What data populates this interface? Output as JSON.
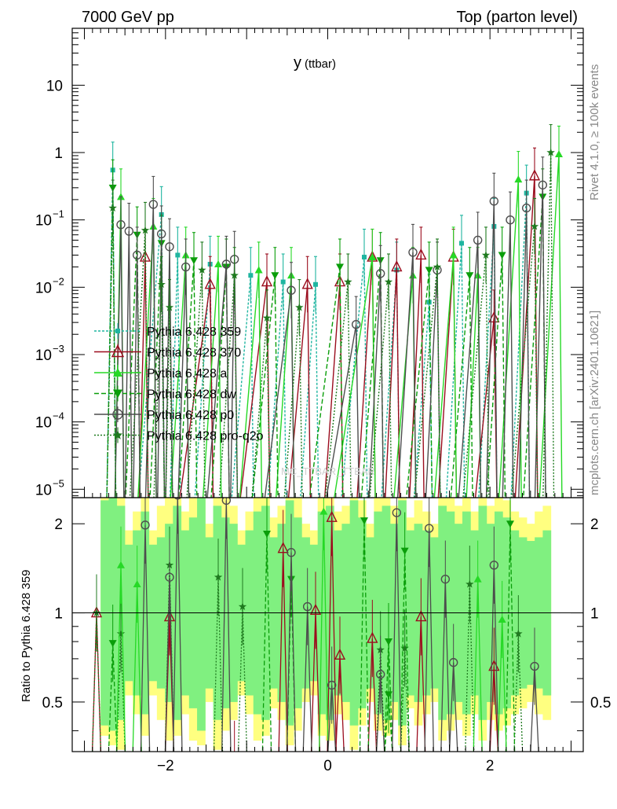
{
  "header": {
    "left": "7000 GeV pp",
    "right": "Top (parton level)"
  },
  "side": {
    "rivet": "Rivet 4.1.0, ≥ 100k events",
    "site": "mcplots.cern.ch [arXiv:2401.10621]"
  },
  "watermark": "MC_TTBAR_TTBAR",
  "colors": {
    "p359": "#1fb5a0",
    "p370": "#9b0d1e",
    "pa": "#26d926",
    "pdw": "#0a9e0a",
    "pp0": "#4d4d4d",
    "pq2o": "#1f7a1f",
    "band_yellow": "#ffff80",
    "band_green": "#80f080"
  },
  "chart_data": {
    "type": "line",
    "title": "y",
    "title_sub": "(ttbar)",
    "xlabel": "",
    "ylabel": "",
    "xlim": [
      -3.15,
      3.15
    ],
    "ylim": [
      7.5e-06,
      70
    ],
    "yscale": "log",
    "x_ticks": [
      "−2",
      "0",
      "2"
    ],
    "y_ticks": [
      {
        "base": "10",
        "exp": "−5",
        "value": 1e-05
      },
      {
        "base": "10",
        "exp": "−4",
        "value": 0.0001
      },
      {
        "base": "10",
        "exp": "−3",
        "value": 0.001
      },
      {
        "base": "10",
        "exp": "−2",
        "value": 0.01
      },
      {
        "base": "10",
        "exp": "−1",
        "value": 0.1
      },
      {
        "base": "1",
        "exp": "",
        "value": 1
      },
      {
        "base": "10",
        "exp": "",
        "value": 10
      }
    ],
    "legend": [
      {
        "key": "p359",
        "label": "Pythia 6.428 359",
        "marker": "square",
        "dash": "3,2"
      },
      {
        "key": "p370",
        "label": "Pythia 6.428 370",
        "marker": "triangle-open",
        "dash": ""
      },
      {
        "key": "pa",
        "label": "Pythia 6.428 a",
        "marker": "triangle",
        "dash": ""
      },
      {
        "key": "pdw",
        "label": "Pythia 6.428 dw",
        "marker": "triangle-down",
        "dash": "6,3"
      },
      {
        "key": "pp0",
        "label": "Pythia 6.428 p0",
        "marker": "circle-open",
        "dash": ""
      },
      {
        "key": "pq2o",
        "label": "Pythia 6.428 pro-q2o",
        "marker": "star",
        "dash": "2,2"
      }
    ],
    "series": [
      {
        "key": "p359",
        "name": "Pythia 6.428 359",
        "x": [
          -2.65,
          -2.05,
          -1.85,
          -1.45,
          -0.95,
          -0.55,
          -0.15,
          0.45,
          0.85,
          1.25,
          1.65,
          2.05,
          2.45
        ],
        "y": [
          0.55,
          0.12,
          0.03,
          0.022,
          0.015,
          0.012,
          0.011,
          0.028,
          0.018,
          0.006,
          0.045,
          0.08,
          0.25
        ]
      },
      {
        "key": "p370",
        "name": "Pythia 6.428 370",
        "x": [
          -2.25,
          -1.45,
          -0.75,
          -0.25,
          0.15,
          0.55,
          0.85,
          1.15,
          1.55,
          2.05,
          2.55
        ],
        "y": [
          0.028,
          0.011,
          0.012,
          0.011,
          0.012,
          0.028,
          0.02,
          0.03,
          0.028,
          0.0035,
          0.45
        ]
      },
      {
        "key": "pa",
        "name": "Pythia 6.428 a",
        "x": [
          -2.55,
          -2.15,
          -1.75,
          -1.35,
          -0.85,
          -0.45,
          0.55,
          1.05,
          1.55,
          1.85,
          2.35,
          2.85
        ],
        "y": [
          0.22,
          0.08,
          0.03,
          0.022,
          0.018,
          0.015,
          0.028,
          0.015,
          0.03,
          0.015,
          0.4,
          0.95
        ]
      },
      {
        "key": "pdw",
        "name": "Pythia 6.428 dw",
        "x": [
          -2.65,
          -2.35,
          -2.05,
          -1.65,
          -1.25,
          -0.65,
          0.15,
          0.65,
          1.25,
          1.75,
          2.15,
          2.65
        ],
        "y": [
          0.3,
          0.06,
          0.045,
          0.025,
          0.02,
          0.015,
          0.02,
          0.025,
          0.018,
          0.015,
          0.03,
          0.22
        ]
      },
      {
        "key": "pp0",
        "name": "Pythia 6.428 p0",
        "x": [
          -2.55,
          -2.45,
          -2.35,
          -2.15,
          -2.05,
          -1.95,
          -1.75,
          -1.25,
          -1.15,
          -0.45,
          0.35,
          0.65,
          1.05,
          1.35,
          1.85,
          2.05,
          2.25,
          2.45,
          2.65
        ],
        "y": [
          0.085,
          0.068,
          0.03,
          0.17,
          0.062,
          0.04,
          0.02,
          0.022,
          0.026,
          0.009,
          0.0028,
          0.016,
          0.033,
          0.018,
          0.05,
          0.19,
          0.1,
          0.15,
          0.33
        ]
      },
      {
        "key": "pq2o",
        "name": "Pythia 6.428 pro-q2o",
        "x": [
          -2.65,
          -2.25,
          -2.05,
          -1.95,
          -1.55,
          -1.15,
          -0.75,
          -0.35,
          0.25,
          0.75,
          1.35,
          1.95,
          2.55,
          2.75
        ],
        "y": [
          0.15,
          0.07,
          0.011,
          0.005,
          0.018,
          0.015,
          0.0035,
          0.005,
          0.012,
          0.012,
          0.02,
          0.03,
          0.08,
          1.0
        ]
      }
    ],
    "ratio": {
      "ylabel": "Ratio to Pythia 6.428 359",
      "ylim": [
        0.34,
        2.45
      ],
      "yscale": "log",
      "y_ticks": [
        {
          "label": "0.5",
          "value": 0.5
        },
        {
          "label": "1",
          "value": 1
        },
        {
          "label": "2",
          "value": 2
        }
      ],
      "reference": 1,
      "band_yellow": [
        2.6,
        2.8,
        2.9,
        1.9,
        2.2,
        2.6,
        1.9,
        2.3,
        2.7,
        2.6,
        2.2,
        2.7,
        2.8,
        2.0,
        2.9,
        2.5,
        2.3,
        1.9,
        2.2,
        2.7,
        2.6,
        2.1,
        2.3,
        2.8,
        2.5,
        2.0,
        1.9,
        2.6,
        2.7,
        2.2,
        2.3,
        2.9,
        2.4,
        2.0,
        2.5,
        2.6,
        2.3,
        2.8,
        2.1,
        2.4,
        2.2,
        2.0,
        2.7,
        2.5,
        2.3,
        2.6,
        2.2,
        2.7,
        2.3,
        2.5,
        2.4,
        2.2,
        2.1,
        2.0,
        2.2,
        2.3
      ],
      "band_green": [
        2.4,
        2.5,
        2.3,
        1.7,
        1.9,
        2.2,
        1.7,
        1.8,
        2.0,
        2.3,
        1.9,
        2.1,
        2.5,
        1.8,
        2.3,
        2.1,
        2.0,
        1.7,
        1.9,
        2.2,
        2.3,
        1.8,
        2.0,
        2.4,
        2.1,
        1.8,
        1.7,
        2.2,
        2.3,
        1.9,
        2.0,
        2.4,
        2.1,
        1.8,
        2.2,
        2.3,
        2.0,
        2.4,
        1.9,
        2.0,
        1.9,
        1.8,
        2.3,
        2.2,
        2.0,
        2.2,
        1.9,
        2.3,
        2.0,
        2.2,
        2.1,
        1.9,
        1.8,
        1.75,
        1.8,
        1.9
      ],
      "points": [
        {
          "key": "p370",
          "x": -2.85,
          "y": 1.0
        },
        {
          "key": "pq2o",
          "x": -2.85,
          "y": 1.0
        },
        {
          "key": "pq2o",
          "x": -2.55,
          "y": 0.85
        },
        {
          "key": "pdw",
          "x": -2.65,
          "y": 0.79
        },
        {
          "key": "pa",
          "x": -2.55,
          "y": 1.45
        },
        {
          "key": "pp0",
          "x": -2.25,
          "y": 1.98
        },
        {
          "key": "pa",
          "x": -2.35,
          "y": 1.25
        },
        {
          "key": "pq2o",
          "x": -1.95,
          "y": 1.45
        },
        {
          "key": "pp0",
          "x": -1.95,
          "y": 1.32
        },
        {
          "key": "p370",
          "x": -1.95,
          "y": 0.97
        },
        {
          "key": "pq2o",
          "x": -1.35,
          "y": 1.32
        },
        {
          "key": "pp0",
          "x": -1.85,
          "y": 2.5
        },
        {
          "key": "pp0",
          "x": -1.25,
          "y": 2.4
        },
        {
          "key": "pq2o",
          "x": -1.05,
          "y": 1.05
        },
        {
          "key": "p370",
          "x": -1.15,
          "y": 0.32
        },
        {
          "key": "pdw",
          "x": -0.75,
          "y": 1.85
        },
        {
          "key": "p370",
          "x": -0.55,
          "y": 1.65
        },
        {
          "key": "pp0",
          "x": -0.45,
          "y": 1.6
        },
        {
          "key": "pdw",
          "x": -0.45,
          "y": 1.3
        },
        {
          "key": "pp0",
          "x": -0.25,
          "y": 1.05
        },
        {
          "key": "p370",
          "x": -0.15,
          "y": 1.02
        },
        {
          "key": "pa",
          "x": -0.05,
          "y": 2.2
        },
        {
          "key": "p370",
          "x": 0.05,
          "y": 2.1
        },
        {
          "key": "p370",
          "x": 0.15,
          "y": 0.72
        },
        {
          "key": "pp0",
          "x": 0.05,
          "y": 0.57
        },
        {
          "key": "pdw",
          "x": 0.45,
          "y": 2.05
        },
        {
          "key": "pp0",
          "x": 0.85,
          "y": 2.18
        },
        {
          "key": "pq2o",
          "x": 0.65,
          "y": 0.75
        },
        {
          "key": "p370",
          "x": 0.55,
          "y": 0.82
        },
        {
          "key": "pdw",
          "x": 0.75,
          "y": 0.8
        },
        {
          "key": "pp0",
          "x": 0.65,
          "y": 0.62
        },
        {
          "key": "pdw",
          "x": 0.75,
          "y": 0.53
        },
        {
          "key": "pq2o",
          "x": 0.95,
          "y": 0.76
        },
        {
          "key": "pdw",
          "x": 0.95,
          "y": 1.62
        },
        {
          "key": "pp0",
          "x": 1.25,
          "y": 1.93
        },
        {
          "key": "p370",
          "x": 1.15,
          "y": 0.97
        },
        {
          "key": "pp0",
          "x": 1.45,
          "y": 1.3
        },
        {
          "key": "pp0",
          "x": 1.55,
          "y": 0.68
        },
        {
          "key": "pq2o",
          "x": 1.75,
          "y": 1.25
        },
        {
          "key": "pa",
          "x": 1.85,
          "y": 1.3
        },
        {
          "key": "pp0",
          "x": 2.05,
          "y": 1.45
        },
        {
          "key": "p370",
          "x": 2.05,
          "y": 0.66
        },
        {
          "key": "pq2o",
          "x": 2.35,
          "y": 0.85
        },
        {
          "key": "pdw",
          "x": 2.25,
          "y": 2.0
        },
        {
          "key": "pp0",
          "x": 2.55,
          "y": 0.66
        },
        {
          "key": "pa",
          "x": 2.15,
          "y": 0.95
        }
      ]
    }
  }
}
